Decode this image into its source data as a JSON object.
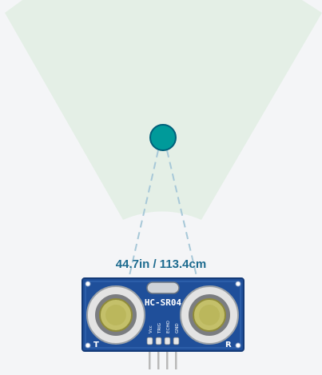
{
  "sensor": {
    "model_label": "HC-SR04",
    "pin_labels": [
      "Vcc",
      "TRIG",
      "ECHO",
      "GND"
    ],
    "transmitter_mark": "T",
    "receiver_mark": "R"
  },
  "readout": {
    "distance": "44.7in / 113.4cm"
  },
  "colors": {
    "background": "#f4f5f7",
    "sensing_cone": "#e4efe6",
    "target": "#009a9a",
    "target_outline": "#00607a",
    "echo_lines": "#a7c8d8",
    "board": "#1f4f9a",
    "board_outline": "#133a78",
    "readout_text": "#1d6b8f",
    "transducer_mesh": "#a39f46",
    "pins": "#b9b9b9"
  },
  "icons": {
    "target": "circle-target-icon",
    "transducer": "ultrasonic-transducer-icon",
    "crystal": "crystal-oscillator-icon"
  }
}
